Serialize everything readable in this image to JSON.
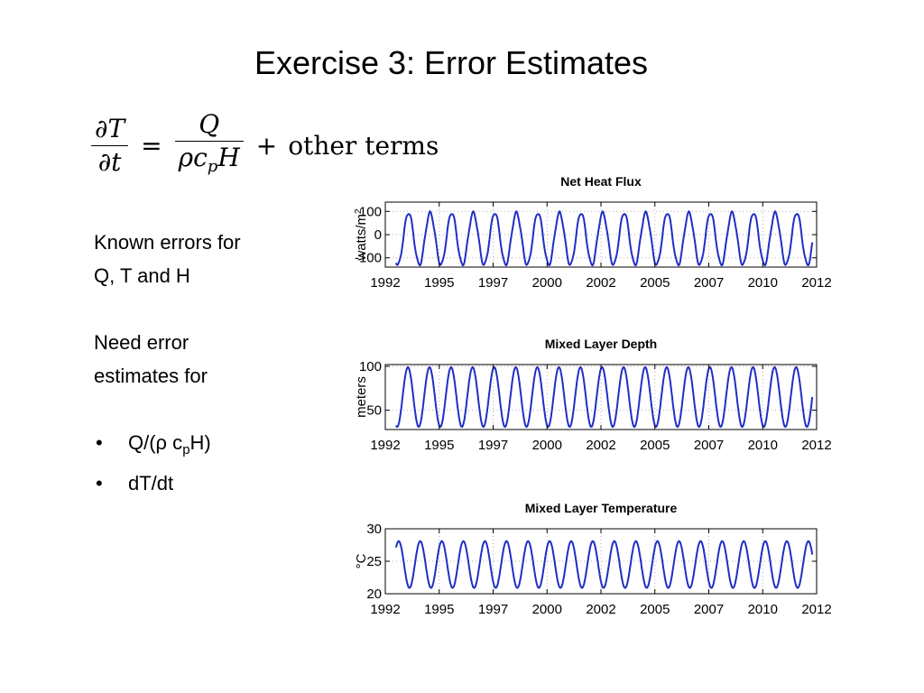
{
  "slide": {
    "title": "Exercise 3: Error Estimates",
    "equation": {
      "lhs_num": "∂T",
      "lhs_den": "∂t",
      "equals": "=",
      "rhs_num": "Q",
      "rhs_den_rho": "ρc",
      "rhs_den_sub": "p",
      "rhs_den_h": "H",
      "plus": "+",
      "other_terms": "other terms"
    },
    "text": {
      "line1": "Known errors for",
      "line2": "Q, T and H",
      "line3": "Need error",
      "line4": "estimates for",
      "bullet1_a": "Q/(ρ c",
      "bullet1_sub": "p",
      "bullet1_b": "H)",
      "bullet2": "dT/dt"
    }
  },
  "chart_data": [
    {
      "type": "line",
      "title": "Net Heat Flux",
      "ylabel": "watts/m",
      "ylabel_sup": "2",
      "ylim": [
        -140,
        140
      ],
      "yticks": [
        100,
        0,
        -100
      ],
      "ytick_labels": [
        "100",
        "0",
        "-100"
      ],
      "xlim": [
        1992,
        2012
      ],
      "xticks": [
        1992,
        1994.5,
        1997,
        1999.5,
        2002,
        2004.5,
        2007,
        2009.5,
        2012
      ],
      "xtick_labels": [
        "1992",
        "1995",
        "1997",
        "2000",
        "2002",
        "2005",
        "2007",
        "2010",
        "2012"
      ],
      "grid": true,
      "color": "#1f2fc4",
      "series": [
        {
          "x_start": 1992.5,
          "x_end": 2011.8,
          "mean": -18,
          "amplitude": 112,
          "phase_peak": 0.08,
          "shape": "clipped"
        }
      ]
    },
    {
      "type": "line",
      "title": "Mixed Layer Depth",
      "ylabel": "meters",
      "ylim": [
        28,
        102
      ],
      "yticks": [
        100,
        50
      ],
      "ytick_labels": [
        "100",
        "50"
      ],
      "xlim": [
        1992,
        2012
      ],
      "xticks": [
        1992,
        1994.5,
        1997,
        1999.5,
        2002,
        2004.5,
        2007,
        2009.5,
        2012
      ],
      "xtick_labels": [
        "1992",
        "1995",
        "1997",
        "2000",
        "2002",
        "2005",
        "2007",
        "2010",
        "2012"
      ],
      "grid": true,
      "color": "#1f2fc4",
      "series": [
        {
          "x_start": 1992.5,
          "x_end": 2011.8,
          "mean": 65,
          "amplitude": 34,
          "phase_peak": 0.05,
          "shape": "sine"
        }
      ]
    },
    {
      "type": "line",
      "title": "Mixed Layer Temperature",
      "ylabel": "°C",
      "ylim": [
        20,
        30
      ],
      "yticks": [
        30,
        25,
        20
      ],
      "ytick_labels": [
        "30",
        "25",
        "20"
      ],
      "xlim": [
        1992,
        2012
      ],
      "xticks": [
        1992,
        1994.5,
        1997,
        1999.5,
        2002,
        2004.5,
        2007,
        2009.5,
        2012
      ],
      "xtick_labels": [
        "1992",
        "1995",
        "1997",
        "2000",
        "2002",
        "2005",
        "2007",
        "2010",
        "2012"
      ],
      "grid": true,
      "color": "#1f2fc4",
      "series": [
        {
          "x_start": 1992.5,
          "x_end": 2011.8,
          "mean": 24.5,
          "amplitude": 3.6,
          "phase_peak": 0.62,
          "shape": "sine"
        }
      ]
    }
  ]
}
